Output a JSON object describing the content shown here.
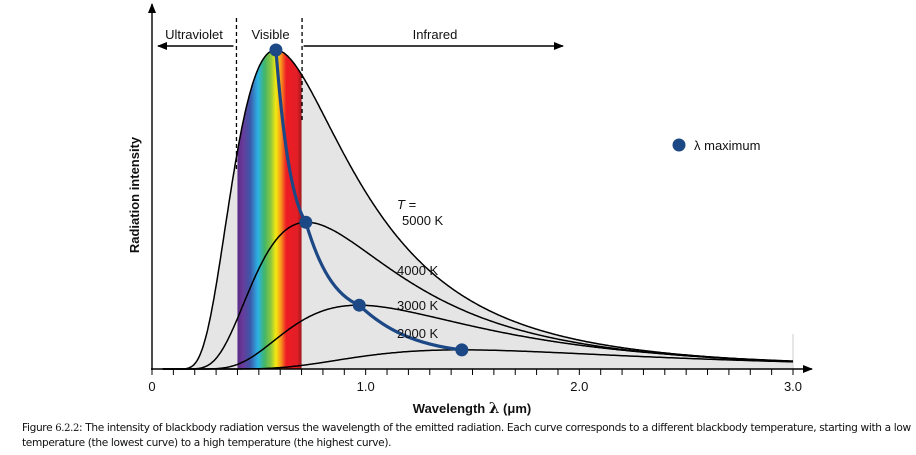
{
  "chart_data": {
    "type": "line",
    "title": "",
    "xlabel": "Wavelength λ (μm)",
    "xlabel_parts": {
      "word": "Wavelength",
      "symbol": "λ",
      "unit": "(μm)"
    },
    "ylabel": "Radiation intensity",
    "xlim": [
      0,
      3.0
    ],
    "ylim": [
      0,
      1.0
    ],
    "x_ticks": [
      {
        "value": 0,
        "label": "0"
      },
      {
        "value": 1.0,
        "label": "1.0"
      },
      {
        "value": 2.0,
        "label": "2.0"
      },
      {
        "value": 3.0,
        "label": "3.0"
      }
    ],
    "minor_tick_step": 0.1,
    "grid": false,
    "regions": [
      {
        "name": "Ultraviolet",
        "x_range": [
          0,
          0.4
        ],
        "arrow": "left"
      },
      {
        "name": "Visible",
        "x_range": [
          0.4,
          0.7
        ]
      },
      {
        "name": "Infrared",
        "x_range": [
          0.7,
          3.0
        ],
        "arrow": "right"
      }
    ],
    "visible_band": {
      "from": 0.4,
      "to": 0.7
    },
    "temperature_prefix": "T =",
    "series": [
      {
        "name": "5000 K",
        "temperature_K": 5000,
        "label": "5000 K",
        "peak_um": 0.58,
        "peak_intensity": 1.0
      },
      {
        "name": "4000 K",
        "temperature_K": 4000,
        "label": "4000 K",
        "peak_um": 0.72,
        "peak_intensity": 0.46
      },
      {
        "name": "3000 K",
        "temperature_K": 3000,
        "label": "3000 K",
        "peak_um": 0.97,
        "peak_intensity": 0.2
      },
      {
        "name": "2000 K",
        "temperature_K": 2000,
        "label": "2000 K",
        "peak_um": 1.45,
        "peak_intensity": 0.06
      }
    ],
    "lambda_max_points": [
      {
        "x": 0.58,
        "y": 1.0
      },
      {
        "x": 0.72,
        "y": 0.46
      },
      {
        "x": 0.97,
        "y": 0.2
      },
      {
        "x": 1.45,
        "y": 0.06
      }
    ],
    "legend": {
      "label": "λ maximum",
      "position": "right"
    },
    "colors": {
      "lambda_max": "#1c4885",
      "fill": "#e5e5e5",
      "curve": "#000000"
    }
  },
  "caption": {
    "prefix": "Figure ",
    "number": "6.2.2",
    "text": ": The intensity of blackbody radiation versus the wavelength of the emitted radiation. Each curve corresponds to a different blackbody temperature, starting with a low temperature (the lowest curve) to a high temperature (the highest curve)."
  }
}
